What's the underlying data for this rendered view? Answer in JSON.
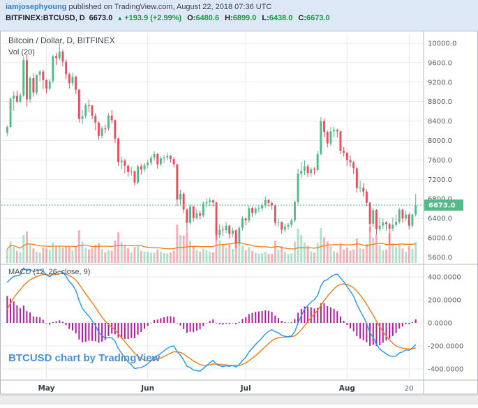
{
  "header": {
    "author": "iamjosephyoung",
    "published_text": "published on TradingView.com, August 22, 2018 07:36 UTC",
    "symbol": "BITFINEX:BTCUSD, D",
    "last_price": "6673.0",
    "change_arrow": "▲",
    "change_text": "+193.9 (+2.99%)",
    "ohlc": [
      {
        "label": "O:",
        "value": "6480.6"
      },
      {
        "label": "H:",
        "value": "6899.0"
      },
      {
        "label": "L:",
        "value": "6438.0"
      },
      {
        "label": "C:",
        "value": "6673.0"
      }
    ]
  },
  "price_pane": {
    "title": "Bitcoin / Dollar, D, BITFINEX",
    "volume_label": "Vol (20)",
    "last_price_label": "6673.0"
  },
  "macd_pane": {
    "title": "MACD (12, 26, close, 9)",
    "watermark": "BTCUSD chart by TradingView"
  },
  "chart_data": {
    "type": "candlestick",
    "symbol": "BITFINEX:BTCUSD",
    "interval": "D",
    "title": "Bitcoin / Dollar, D, BITFINEX",
    "last_price": 6673.0,
    "price_axis": {
      "min": 5485,
      "max": 10200,
      "tick_start": 5600,
      "tick_step": 400,
      "tick_count": 12
    },
    "macd_axis": {
      "min": -485,
      "max": 497,
      "tick_start": -400,
      "tick_step": 200,
      "tick_count": 5
    },
    "x_ticks": [
      {
        "index": 12,
        "label": "May"
      },
      {
        "index": 43,
        "label": "Jun"
      },
      {
        "index": 73,
        "label": "Jul"
      },
      {
        "index": 104,
        "label": "Aug"
      },
      {
        "index": 123,
        "label": "20"
      }
    ],
    "indicators": {
      "volume_ma": {
        "length": 20
      },
      "macd": {
        "fast": 12,
        "slow": 26,
        "signal": 9,
        "seed_ema_fast": 8150,
        "seed_ema_slow": 7780,
        "seed_signal": 60
      }
    },
    "colors": {
      "up": "#53b987",
      "down": "#eb4d5c",
      "vol_up": "rgba(83,185,135,0.45)",
      "vol_down": "rgba(235,77,92,0.45)",
      "volume_ma": "#f57b15",
      "macd_line": "#2196f3",
      "signal_line": "#f57b15",
      "histogram": "#b81ba0",
      "grid": "#e4e8ef",
      "border": "#b2b7c1",
      "axis_text": "#555b66",
      "last_price_bg": "#53b987",
      "watermark": "#4a90d9",
      "link_blue": "#2f7fce",
      "text_green": "#0f9d3f",
      "header_bg": "#dce8f6"
    },
    "candles": [
      [
        8160,
        8310,
        8090,
        8280,
        60
      ],
      [
        8280,
        8890,
        8250,
        8860,
        92
      ],
      [
        8860,
        9010,
        8610,
        8920,
        70
      ],
      [
        8920,
        9025,
        8770,
        8800,
        52
      ],
      [
        8800,
        8980,
        8770,
        8930,
        46
      ],
      [
        8930,
        9720,
        8900,
        9650,
        120
      ],
      [
        9650,
        9760,
        8700,
        8845,
        135
      ],
      [
        8845,
        9320,
        8780,
        9281,
        80
      ],
      [
        9281,
        9380,
        8900,
        8987,
        62
      ],
      [
        8987,
        9360,
        8940,
        9348,
        48
      ],
      [
        9348,
        9450,
        9220,
        9419,
        44
      ],
      [
        9419,
        9455,
        9050,
        9240,
        66
      ],
      [
        9240,
        9255,
        8975,
        9067,
        62
      ],
      [
        9067,
        9270,
        9022,
        9219,
        55
      ],
      [
        9219,
        9760,
        9175,
        9734,
        88
      ],
      [
        9734,
        9795,
        9555,
        9692,
        70
      ],
      [
        9692,
        9990,
        9650,
        9826,
        75
      ],
      [
        9826,
        9865,
        9525,
        9619,
        66
      ],
      [
        9619,
        9670,
        9270,
        9362,
        72
      ],
      [
        9362,
        9400,
        9070,
        9180,
        69
      ],
      [
        9180,
        9395,
        9120,
        9310,
        54
      ],
      [
        9310,
        9335,
        8960,
        9043,
        73
      ],
      [
        9043,
        9060,
        8370,
        8441,
        140
      ],
      [
        8441,
        8630,
        8335,
        8504,
        92
      ],
      [
        8504,
        8770,
        8455,
        8723,
        65
      ],
      [
        8723,
        8845,
        8585,
        8716,
        58
      ],
      [
        8716,
        8738,
        8435,
        8510,
        64
      ],
      [
        8510,
        8560,
        8210,
        8368,
        78
      ],
      [
        8368,
        8390,
        8015,
        8094,
        85
      ],
      [
        8094,
        8295,
        8045,
        8250,
        60
      ],
      [
        8250,
        8330,
        8150,
        8247,
        46
      ],
      [
        8247,
        8560,
        8205,
        8513,
        55
      ],
      [
        8513,
        8630,
        8350,
        8418,
        52
      ],
      [
        8418,
        8435,
        7950,
        8041,
        96
      ],
      [
        8041,
        8060,
        7480,
        7558,
        132
      ],
      [
        7558,
        7670,
        7410,
        7587,
        90
      ],
      [
        7587,
        7620,
        7330,
        7480,
        74
      ],
      [
        7480,
        7515,
        7255,
        7355,
        63
      ],
      [
        7355,
        7460,
        7280,
        7368,
        45
      ],
      [
        7368,
        7390,
        7075,
        7135,
        68
      ],
      [
        7135,
        7515,
        7100,
        7472,
        71
      ],
      [
        7472,
        7520,
        7300,
        7406,
        52
      ],
      [
        7406,
        7540,
        7345,
        7494,
        48
      ],
      [
        7494,
        7600,
        7430,
        7541,
        47
      ],
      [
        7541,
        7690,
        7490,
        7643,
        44
      ],
      [
        7643,
        7780,
        7585,
        7720,
        46
      ],
      [
        7720,
        7745,
        7420,
        7514,
        58
      ],
      [
        7514,
        7680,
        7475,
        7633,
        49
      ],
      [
        7633,
        7700,
        7540,
        7653,
        42
      ],
      [
        7653,
        7750,
        7590,
        7684,
        41
      ],
      [
        7684,
        7700,
        7545,
        7622,
        45
      ],
      [
        7622,
        7660,
        7445,
        7513,
        52
      ],
      [
        7513,
        7520,
        6647,
        6786,
        165
      ],
      [
        6786,
        6990,
        6680,
        6906,
        120
      ],
      [
        6906,
        6940,
        6510,
        6583,
        118
      ],
      [
        6583,
        6610,
        6140,
        6308,
        135
      ],
      [
        6308,
        6685,
        6270,
        6646,
        95
      ],
      [
        6646,
        6660,
        6335,
        6410,
        74
      ],
      [
        6410,
        6590,
        6370,
        6505,
        56
      ],
      [
        6505,
        6555,
        6380,
        6456,
        48
      ],
      [
        6456,
        6750,
        6420,
        6710,
        62
      ],
      [
        6710,
        6810,
        6625,
        6736,
        54
      ],
      [
        6736,
        6830,
        6660,
        6770,
        47
      ],
      [
        6770,
        6790,
        6640,
        6729,
        45
      ],
      [
        6729,
        6740,
        5950,
        6060,
        158
      ],
      [
        6060,
        6280,
        5995,
        6170,
        98
      ],
      [
        6170,
        6255,
        6035,
        6158,
        82
      ],
      [
        6158,
        6330,
        6100,
        6249,
        66
      ],
      [
        6249,
        6270,
        5985,
        6083,
        84
      ],
      [
        6083,
        6210,
        6015,
        6153,
        60
      ],
      [
        6153,
        6175,
        5785,
        5883,
        112
      ],
      [
        5883,
        6240,
        5855,
        6208,
        92
      ],
      [
        6208,
        6440,
        6150,
        6398,
        76
      ],
      [
        6398,
        6420,
        6255,
        6357,
        54
      ],
      [
        6357,
        6670,
        6310,
        6615,
        68
      ],
      [
        6615,
        6650,
        6430,
        6513,
        52
      ],
      [
        6513,
        6635,
        6465,
        6600,
        44
      ],
      [
        6600,
        6660,
        6520,
        6604,
        40
      ],
      [
        6604,
        6720,
        6550,
        6670,
        42
      ],
      [
        6670,
        6850,
        6620,
        6775,
        48
      ],
      [
        6775,
        6800,
        6640,
        6718,
        40
      ],
      [
        6718,
        6750,
        6580,
        6669,
        38
      ],
      [
        6669,
        6685,
        6255,
        6309,
        96
      ],
      [
        6309,
        6400,
        6230,
        6320,
        58
      ],
      [
        6320,
        6340,
        6080,
        6167,
        72
      ],
      [
        6167,
        6290,
        6110,
        6229,
        48
      ],
      [
        6229,
        6310,
        6165,
        6266,
        38
      ],
      [
        6266,
        6400,
        6215,
        6359,
        42
      ],
      [
        6359,
        6770,
        6320,
        6737,
        92
      ],
      [
        6737,
        7420,
        6690,
        7320,
        148
      ],
      [
        7320,
        7560,
        7230,
        7380,
        120
      ],
      [
        7380,
        7590,
        7290,
        7470,
        88
      ],
      [
        7470,
        7515,
        7250,
        7330,
        74
      ],
      [
        7330,
        7445,
        7255,
        7409,
        50
      ],
      [
        7409,
        7450,
        7300,
        7395,
        44
      ],
      [
        7395,
        7790,
        7370,
        7720,
        86
      ],
      [
        7720,
        8480,
        7690,
        8398,
        150
      ],
      [
        8398,
        8450,
        8070,
        8178,
        110
      ],
      [
        8178,
        8210,
        7860,
        7940,
        92
      ],
      [
        7940,
        8280,
        7890,
        8190,
        72
      ],
      [
        8190,
        8290,
        8070,
        8220,
        50
      ],
      [
        8220,
        8245,
        8065,
        8190,
        44
      ],
      [
        8190,
        8205,
        7720,
        7790,
        85
      ],
      [
        7790,
        7870,
        7670,
        7750,
        58
      ],
      [
        7750,
        7765,
        7475,
        7600,
        66
      ],
      [
        7600,
        7690,
        7460,
        7550,
        52
      ],
      [
        7550,
        7580,
        7310,
        7430,
        58
      ],
      [
        7430,
        7450,
        6930,
        7020,
        105
      ],
      [
        7020,
        7180,
        6940,
        7030,
        64
      ],
      [
        7030,
        7120,
        6850,
        6950,
        60
      ],
      [
        6950,
        7000,
        6650,
        6720,
        82
      ],
      [
        6720,
        6740,
        6120,
        6290,
        155
      ],
      [
        6290,
        6620,
        6220,
        6570,
        108
      ],
      [
        6570,
        6590,
        6070,
        6180,
        122
      ],
      [
        6180,
        6420,
        6130,
        6250,
        76
      ],
      [
        6250,
        6400,
        6185,
        6320,
        54
      ],
      [
        6320,
        6345,
        6150,
        6280,
        58
      ],
      [
        6280,
        6310,
        5880,
        6190,
        128
      ],
      [
        6190,
        6420,
        6135,
        6270,
        86
      ],
      [
        6270,
        6480,
        6220,
        6330,
        70
      ],
      [
        6330,
        6615,
        6290,
        6580,
        84
      ],
      [
        6580,
        6600,
        6310,
        6400,
        62
      ],
      [
        6400,
        6560,
        6340,
        6480,
        48
      ],
      [
        6480,
        6515,
        6180,
        6250,
        72
      ],
      [
        6250,
        6500,
        6210,
        6479.1,
        60
      ],
      [
        6480.6,
        6899,
        6438,
        6673,
        90
      ]
    ]
  }
}
